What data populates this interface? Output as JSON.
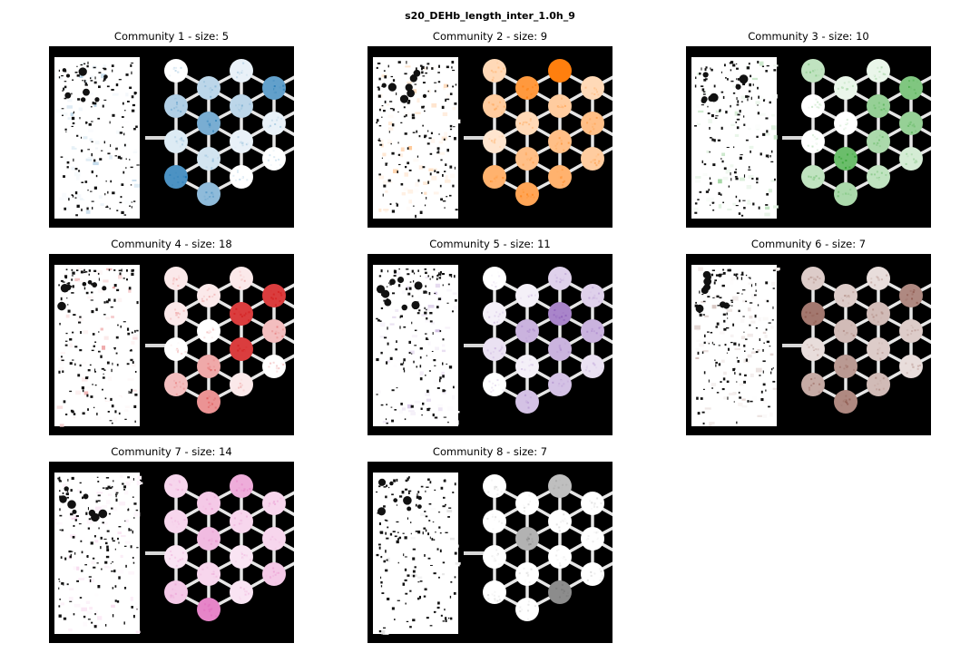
{
  "figure": {
    "title": "s20_DEHb_length_inter_1.0h_9"
  },
  "panels": [
    {
      "title": "Community 1 - size: 5",
      "color": "#1f77b4",
      "highlight": [
        0.0,
        0.35,
        0.15,
        0.8,
        0.3,
        0.6,
        0.2,
        0.5,
        0.1,
        0.3,
        0.1,
        0.0,
        0.7,
        0.1,
        0.0,
        0.2,
        0.1,
        0.3
      ]
    },
    {
      "title": "Community 2 - size: 9",
      "color": "#ff7f0e",
      "highlight": [
        0.3,
        0.4,
        0.2,
        0.6,
        0.8,
        0.3,
        0.5,
        0.7,
        1.0,
        0.4,
        0.5,
        0.6,
        0.3,
        0.5,
        0.4,
        0.3,
        0.3,
        0.2
      ]
    },
    {
      "title": "Community 3 - size: 10",
      "color": "#2ca02c",
      "highlight": [
        0.3,
        0.0,
        0.0,
        0.3,
        0.1,
        0.0,
        0.7,
        0.4,
        0.1,
        0.5,
        0.4,
        0.3,
        0.6,
        0.5,
        0.2,
        0.6,
        0.9,
        0.6
      ]
    },
    {
      "title": "Community 4 - size: 18",
      "color": "#d62728",
      "highlight": [
        0.1,
        0.1,
        0.0,
        0.3,
        0.1,
        0.0,
        0.4,
        0.5,
        0.1,
        0.9,
        0.9,
        0.1,
        0.9,
        0.3,
        0.0,
        0.1,
        0.2,
        0.3
      ]
    },
    {
      "title": "Community 5 - size: 11",
      "color": "#9467bd",
      "highlight": [
        0.0,
        0.1,
        0.2,
        0.0,
        0.1,
        0.5,
        0.1,
        0.4,
        0.3,
        0.8,
        0.5,
        0.4,
        0.3,
        0.5,
        0.2,
        0.3,
        0.3,
        0.8
      ]
    },
    {
      "title": "Community 6 - size: 7",
      "color": "#8c564b",
      "highlight": [
        0.3,
        0.8,
        0.2,
        0.5,
        0.3,
        0.4,
        0.6,
        0.7,
        0.2,
        0.4,
        0.3,
        0.4,
        0.7,
        0.3,
        0.2,
        0.4,
        0.4,
        0.5
      ]
    },
    {
      "title": "Community 7 - size: 14",
      "color": "#e377c2",
      "highlight": [
        0.3,
        0.3,
        0.2,
        0.4,
        0.4,
        0.5,
        0.3,
        0.9,
        0.6,
        0.3,
        0.2,
        0.2,
        0.3,
        0.3,
        0.4,
        0.3,
        0.3,
        0.3
      ]
    },
    {
      "title": "Community 8 - size: 7",
      "color": "#7f7f7f",
      "highlight": [
        0.0,
        0.0,
        0.0,
        0.0,
        0.0,
        0.6,
        0.0,
        0.0,
        0.5,
        0.0,
        0.0,
        0.9,
        0.0,
        0.0,
        0.0,
        0.0,
        0.0,
        0.0
      ]
    }
  ]
}
